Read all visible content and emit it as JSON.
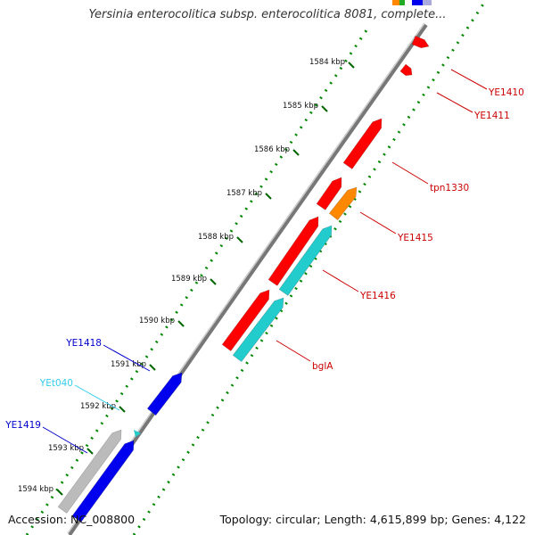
{
  "title": "Yersinia enterocolitica subsp. enterocolitica 8081, complete...",
  "footer": {
    "accession": "Accession: NC_008800",
    "info": "Topology: circular; Length: 4,615,899 bp; Genes: 4,122"
  },
  "scale_labels": [
    "1584 kbp",
    "1585 kbp",
    "1586 kbp",
    "1587 kbp",
    "1588 kbp",
    "1589 kbp",
    "1590 kbp",
    "1591 kbp",
    "1592 kbp",
    "1593 kbp",
    "1594 kbp"
  ],
  "gene_labels": [
    {
      "text": "YE1410",
      "color": "#cc0000"
    },
    {
      "text": "YE1411",
      "color": "#cc0000"
    },
    {
      "text": "tpn1330",
      "color": "#cc0000"
    },
    {
      "text": "YE1415",
      "color": "#cc0000"
    },
    {
      "text": "YE1416",
      "color": "#cc0000"
    },
    {
      "text": "bglA",
      "color": "#cc0000"
    },
    {
      "text": "YE1418",
      "color": "#0000cc"
    },
    {
      "text": "YEt040",
      "color": "#33ccee"
    },
    {
      "text": "YE1419",
      "color": "#0000cc"
    }
  ],
  "colors": {
    "forward_gene": "#ff0000",
    "orange_gene": "#ff8800",
    "cyan_gene": "#22cccc",
    "reverse_gene": "#0000ee",
    "grey_gene": "#bbbbbb",
    "backbone": "#888888",
    "tick_dots": "#007700"
  }
}
